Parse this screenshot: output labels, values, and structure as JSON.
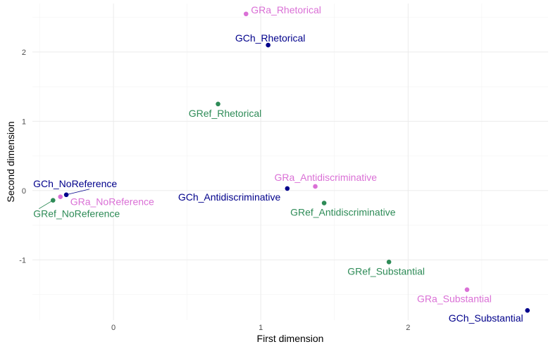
{
  "chart_data": {
    "type": "scatter",
    "xlabel": "First dimension",
    "ylabel": "Second dimension",
    "xlim": [
      -0.55,
      2.95
    ],
    "ylim": [
      -1.87,
      2.7
    ],
    "x_ticks": [
      0,
      1,
      2
    ],
    "y_ticks": [
      -1,
      0,
      1,
      2
    ],
    "grid": true,
    "colors": {
      "GCh": "#00008B",
      "GRa": "#DA70D6",
      "GRef": "#2E8B57"
    },
    "points": [
      {
        "label": "GRa_Rhetorical",
        "group": "GRa",
        "x": 0.9,
        "y": 2.55
      },
      {
        "label": "GCh_Rhetorical",
        "group": "GCh",
        "x": 1.05,
        "y": 2.1
      },
      {
        "label": "GRef_Rhetorical",
        "group": "GRef",
        "x": 0.71,
        "y": 1.25
      },
      {
        "label": "GCh_NoReference",
        "group": "GCh",
        "x": -0.32,
        "y": -0.06
      },
      {
        "label": "GRa_NoReference",
        "group": "GRa",
        "x": -0.36,
        "y": -0.09
      },
      {
        "label": "GRef_NoReference",
        "group": "GRef",
        "x": -0.41,
        "y": -0.14
      },
      {
        "label": "GRa_Antidiscriminative",
        "group": "GRa",
        "x": 1.37,
        "y": 0.06
      },
      {
        "label": "GCh_Antidiscriminative",
        "group": "GCh",
        "x": 1.18,
        "y": 0.03
      },
      {
        "label": "GRef_Antidiscriminative",
        "group": "GRef",
        "x": 1.43,
        "y": -0.18
      },
      {
        "label": "GRef_Substantial",
        "group": "GRef",
        "x": 1.87,
        "y": -1.03
      },
      {
        "label": "GRa_Substantial",
        "group": "GRa",
        "x": 2.4,
        "y": -1.43
      },
      {
        "label": "GCh_Substantial",
        "group": "GCh",
        "x": 2.81,
        "y": -1.73
      }
    ]
  }
}
